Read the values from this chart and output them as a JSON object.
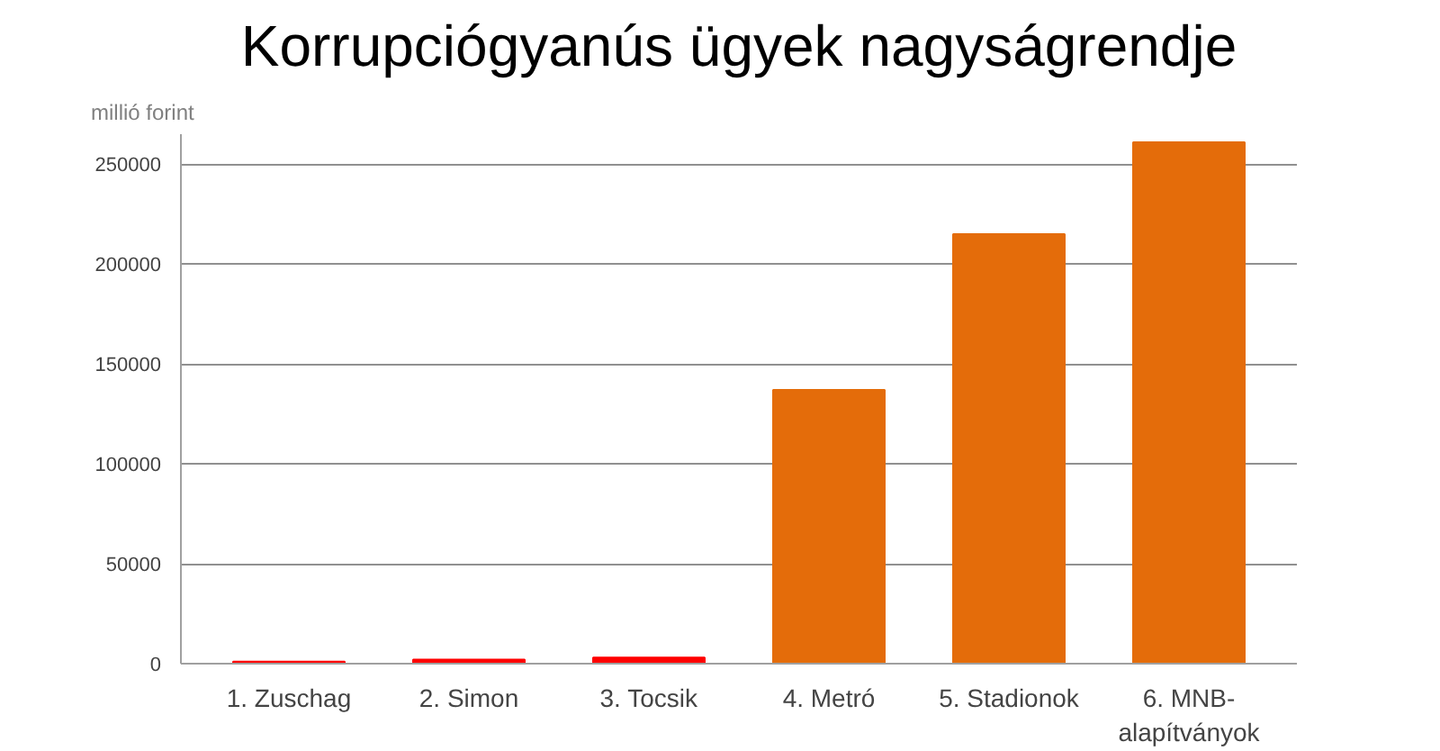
{
  "chart_data": {
    "type": "bar",
    "title": "Korrupciógyanús ügyek nagyságrendje",
    "ylabel": "millió forint",
    "categories": [
      "1. Zuschag",
      "2. Simon",
      "3. Tocsik",
      "4. Metró",
      "5. Stadionok",
      "6. MNB-\nalapítványok"
    ],
    "values": [
      1000,
      2000,
      3000,
      137000,
      215000,
      261000
    ],
    "colors": [
      "#ff0000",
      "#ff0000",
      "#ff0000",
      "#e46c0a",
      "#e46c0a",
      "#e46c0a"
    ],
    "ylim": [
      0,
      265000
    ],
    "yticks": [
      0,
      50000,
      100000,
      150000,
      200000,
      250000
    ],
    "grid": "y"
  }
}
